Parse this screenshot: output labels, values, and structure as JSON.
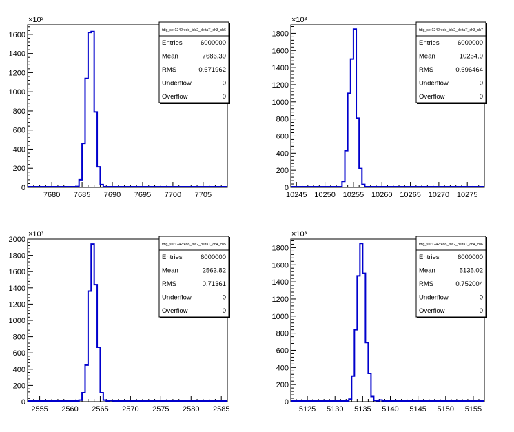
{
  "colors": {
    "line": "#0000cc",
    "axis": "#000000",
    "background": "#ffffff"
  },
  "chart_data": [
    {
      "type": "histogram",
      "title": "tdig_ser1242redo_tdc2_deltaT_ch3_ch6",
      "exponent_label": "×10³",
      "xlim": [
        7676,
        7709
      ],
      "ylim": [
        0,
        1700
      ],
      "x_ticks": [
        7680,
        7685,
        7690,
        7695,
        7700,
        7705
      ],
      "y_ticks": [
        0,
        200,
        400,
        600,
        800,
        1000,
        1200,
        1400,
        1600
      ],
      "bins": {
        "start": 7684,
        "width": 0.5,
        "counts": [
          10,
          80,
          460,
          1140,
          1620,
          1630,
          790,
          215,
          30,
          3
        ]
      },
      "stats": [
        {
          "label": "Entries",
          "value": "6000000"
        },
        {
          "label": "Mean",
          "value": "7686.39"
        },
        {
          "label": "RMS",
          "value": "0.671962"
        },
        {
          "label": "Underflow",
          "value": "0"
        },
        {
          "label": "Overflow",
          "value": "0"
        }
      ]
    },
    {
      "type": "histogram",
      "title": "tdig_ser1242redo_tdc2_deltaT_ch3_ch7",
      "exponent_label": "×10³",
      "xlim": [
        10244,
        10278
      ],
      "ylim": [
        0,
        1900
      ],
      "x_ticks": [
        10245,
        10250,
        10255,
        10260,
        10265,
        10270,
        10275
      ],
      "y_ticks": [
        0,
        200,
        400,
        600,
        800,
        1000,
        1200,
        1400,
        1600,
        1800
      ],
      "bins": {
        "start": 10252.5,
        "width": 0.5,
        "counts": [
          8,
          70,
          430,
          1100,
          1500,
          1850,
          810,
          220,
          35,
          5
        ]
      },
      "stats": [
        {
          "label": "Entries",
          "value": "6000000"
        },
        {
          "label": "Mean",
          "value": "10254.9"
        },
        {
          "label": "RMS",
          "value": "0.696464"
        },
        {
          "label": "Underflow",
          "value": "0"
        },
        {
          "label": "Overflow",
          "value": "0"
        }
      ]
    },
    {
      "type": "histogram",
      "title": "tdig_ser1242redo_tdc2_deltaT_ch4_ch5",
      "exponent_label": "×10³",
      "xlim": [
        2553,
        2586
      ],
      "ylim": [
        0,
        2000
      ],
      "x_ticks": [
        2555,
        2560,
        2565,
        2570,
        2575,
        2580,
        2585
      ],
      "y_ticks": [
        0,
        200,
        400,
        600,
        800,
        1000,
        1200,
        1400,
        1600,
        1800,
        2000
      ],
      "bins": {
        "start": 2561.5,
        "width": 0.5,
        "counts": [
          20,
          110,
          450,
          1360,
          1940,
          1440,
          670,
          110,
          20,
          10,
          15,
          10,
          5
        ]
      },
      "stats": [
        {
          "label": "Entries",
          "value": "6000000"
        },
        {
          "label": "Mean",
          "value": "2563.82"
        },
        {
          "label": "RMS",
          "value": "0.71361"
        },
        {
          "label": "Underflow",
          "value": "0"
        },
        {
          "label": "Overflow",
          "value": "0"
        }
      ]
    },
    {
      "type": "histogram",
      "title": "tdig_ser1242redo_tdc2_deltaT_ch4_ch6",
      "exponent_label": "×10³",
      "xlim": [
        5122,
        5157
      ],
      "ylim": [
        0,
        1900
      ],
      "x_ticks": [
        5125,
        5130,
        5135,
        5140,
        5145,
        5150,
        5155
      ],
      "y_ticks": [
        0,
        200,
        400,
        600,
        800,
        1000,
        1200,
        1400,
        1600,
        1800
      ],
      "bins": {
        "start": 5132.5,
        "width": 0.5,
        "counts": [
          30,
          300,
          840,
          1470,
          1850,
          1500,
          690,
          330,
          60,
          15,
          10,
          20,
          10,
          5
        ]
      },
      "stats": [
        {
          "label": "Entries",
          "value": "6000000"
        },
        {
          "label": "Mean",
          "value": "5135.02"
        },
        {
          "label": "RMS",
          "value": "0.752004"
        },
        {
          "label": "Underflow",
          "value": "0"
        },
        {
          "label": "Overflow",
          "value": "0"
        }
      ]
    }
  ]
}
